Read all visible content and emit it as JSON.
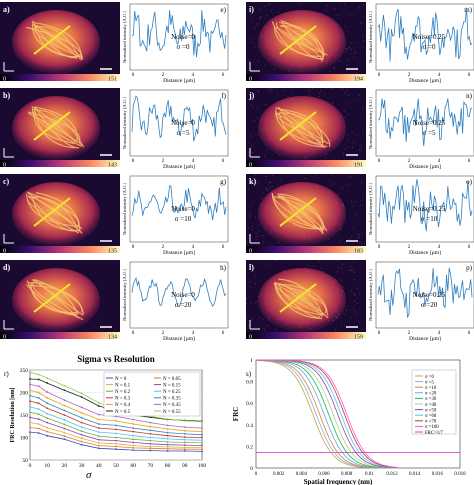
{
  "colors": {
    "micrograph_hot": "#f6c46a",
    "micrograph_mid": "#b42d4f",
    "micrograph_dark": "#1c0a33",
    "profile_line": "#2f7fc0",
    "scan_line": "#f2e62e",
    "frc_threshold": "#e53bd6"
  },
  "colormap_min": "0",
  "panels": [
    {
      "label": "a)",
      "profile_label": "e)",
      "noise": "Noise=0",
      "sigma": "σ =0",
      "cbar_max": "151"
    },
    {
      "label": "b)",
      "profile_label": "f)",
      "noise": "Noise=0",
      "sigma": "σ =5",
      "cbar_max": "143"
    },
    {
      "label": "c)",
      "profile_label": "g)",
      "noise": "Noise=0",
      "sigma": "σ =10",
      "cbar_max": "135"
    },
    {
      "label": "d)",
      "profile_label": "h)",
      "noise": "Noise=0",
      "sigma": "σ =20",
      "cbar_max": "134"
    },
    {
      "label": "i)",
      "profile_label": "m)",
      "noise": "Noise=0.25",
      "sigma": "σ =0",
      "cbar_max": "194"
    },
    {
      "label": "j)",
      "profile_label": "n)",
      "noise": "Noise=0.25",
      "sigma": "σ =5",
      "cbar_max": "191"
    },
    {
      "label": "k)",
      "profile_label": "o)",
      "noise": "Noise=0.25",
      "sigma": "σ =10",
      "cbar_max": "183"
    },
    {
      "label": "l)",
      "profile_label": "p)",
      "noise": "Noise=0.25",
      "sigma": "σ =20",
      "cbar_max": "159"
    }
  ],
  "profile_axes": {
    "ylabel": "Normalized intensity [A.U.]",
    "xlabel": "Distance [µm]",
    "xticks": [
      "0",
      "2",
      "4",
      "6"
    ]
  },
  "chart_data": [
    {
      "type": "line",
      "panel_label": "r)",
      "title": "Sigma vs Resolution",
      "xlabel": "σ",
      "ylabel": "FRC Resolution [nm]",
      "xlim": [
        0,
        100
      ],
      "ylim": [
        50,
        250
      ],
      "x_ticks": [
        0,
        10,
        20,
        30,
        40,
        50,
        60,
        70,
        80,
        90,
        100
      ],
      "y_ticks": [
        50,
        100,
        150,
        200,
        250
      ],
      "x": [
        0,
        5,
        10,
        20,
        30,
        40,
        50,
        60,
        70,
        80,
        90,
        100
      ],
      "legend_position": "center",
      "series": [
        {
          "name": "N = 0",
          "color": "#3b4cc0",
          "values": [
            112,
            110,
            104,
            96,
            84,
            76,
            74,
            72,
            71,
            70,
            70,
            69
          ]
        },
        {
          "name": "N = 0.05",
          "color": "#e07b39",
          "values": [
            122,
            120,
            113,
            103,
            91,
            82,
            80,
            77,
            76,
            75,
            74,
            74
          ]
        },
        {
          "name": "N = 0.1",
          "color": "#d9b23a",
          "values": [
            133,
            130,
            122,
            111,
            98,
            88,
            86,
            82,
            80,
            79,
            78,
            78
          ]
        },
        {
          "name": "N = 0.15",
          "color": "#8e44ad",
          "values": [
            145,
            141,
            133,
            120,
            106,
            95,
            93,
            89,
            86,
            84,
            83,
            82
          ]
        },
        {
          "name": "N = 0.2",
          "color": "#6ab04c",
          "values": [
            156,
            152,
            143,
            129,
            114,
            103,
            100,
            96,
            93,
            90,
            89,
            88
          ]
        },
        {
          "name": "N = 0.25",
          "color": "#4fc3f7",
          "values": [
            168,
            163,
            153,
            139,
            123,
            112,
            109,
            104,
            100,
            97,
            95,
            94
          ]
        },
        {
          "name": "N = 0.3",
          "color": "#c0392b",
          "values": [
            181,
            176,
            165,
            150,
            133,
            121,
            118,
            113,
            108,
            104,
            101,
            100
          ]
        },
        {
          "name": "N = 0.35",
          "color": "#2e86c1",
          "values": [
            193,
            188,
            176,
            160,
            144,
            130,
            127,
            121,
            116,
            111,
            108,
            106
          ]
        },
        {
          "name": "N = 0.4",
          "color": "#f39c12",
          "values": [
            205,
            200,
            188,
            171,
            155,
            140,
            137,
            130,
            124,
            119,
            115,
            113
          ]
        },
        {
          "name": "N = 0.45",
          "color": "#a569bd",
          "values": [
            218,
            214,
            201,
            183,
            167,
            151,
            147,
            140,
            133,
            127,
            123,
            121
          ]
        },
        {
          "name": "N = 0.5",
          "color": "#222222",
          "values": [
            230,
            229,
            221,
            205,
            190,
            170,
            160,
            150,
            145,
            140,
            138,
            136
          ]
        },
        {
          "name": "N = 0.55",
          "color": "#8fd14f",
          "values": [
            245,
            240,
            232,
            215,
            198,
            177,
            164,
            154,
            147,
            141,
            137,
            135
          ]
        }
      ]
    },
    {
      "type": "line",
      "panel_label": "s)",
      "title": "Fourier Ring Correlation",
      "xlabel": "Spatial frequency (nm)",
      "ylabel": "FRC",
      "xlim": [
        0,
        0.018
      ],
      "ylim": [
        0,
        1
      ],
      "x_ticks": [
        "0",
        "0.002",
        "0.004",
        "0.006",
        "0.008",
        "0.01",
        "0.012",
        "0.014",
        "0.016",
        "0.018"
      ],
      "y_ticks": [
        "0",
        "0.2",
        "0.4",
        "0.6",
        "0.8",
        "1"
      ],
      "legend_position": "right",
      "series": [
        {
          "name": "σ =0",
          "color": "#c9a33f",
          "half": 0.005
        },
        {
          "name": "σ =5",
          "color": "#7fb3d5",
          "half": 0.0053
        },
        {
          "name": "σ =10",
          "color": "#e07b39",
          "half": 0.0056
        },
        {
          "name": "σ =20",
          "color": "#5dade2",
          "half": 0.006
        },
        {
          "name": "σ =30",
          "color": "#27ae60",
          "half": 0.0064
        },
        {
          "name": "σ =40",
          "color": "#a3d977",
          "half": 0.0068
        },
        {
          "name": "σ =50",
          "color": "#8e44ad",
          "half": 0.0072
        },
        {
          "name": "σ =60",
          "color": "#4fc3f7",
          "half": 0.0075
        },
        {
          "name": "σ =70",
          "color": "#c0392b",
          "half": 0.0078
        },
        {
          "name": "σ =100",
          "color": "#ff5ad8",
          "half": 0.008
        }
      ],
      "threshold": {
        "name": "FRC=1/7",
        "value": 0.143,
        "color": "#e53bd6"
      }
    }
  ]
}
